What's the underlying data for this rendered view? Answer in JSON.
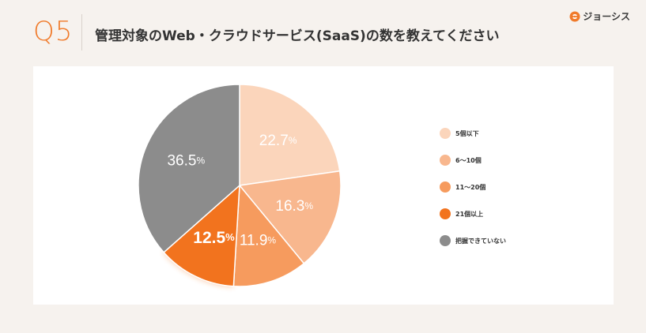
{
  "header": {
    "question_number": "Q5",
    "question_text": "管理対象のWeb・クラウドサービス(SaaS)の数を教えてください"
  },
  "brand": {
    "name": "ジョーシス",
    "logo_icon": "joshys-logo-icon",
    "color": "#f07a2a"
  },
  "chart_data": {
    "type": "pie",
    "categories": [
      "5個以下",
      "6〜10個",
      "11〜20個",
      "21個以上",
      "把握できていない"
    ],
    "values": [
      22.7,
      16.3,
      11.9,
      12.5,
      36.5
    ],
    "value_labels": [
      "22.7",
      "16.3",
      "11.9",
      "12.5",
      "36.5"
    ],
    "unit": "%",
    "colors": [
      "#fbd5bb",
      "#f8b78e",
      "#f69b5e",
      "#f2731e",
      "#8c8c8c"
    ],
    "highlighted": "21個以上",
    "start_angle_deg": 0,
    "direction": "clockwise",
    "legend_position": "right"
  }
}
